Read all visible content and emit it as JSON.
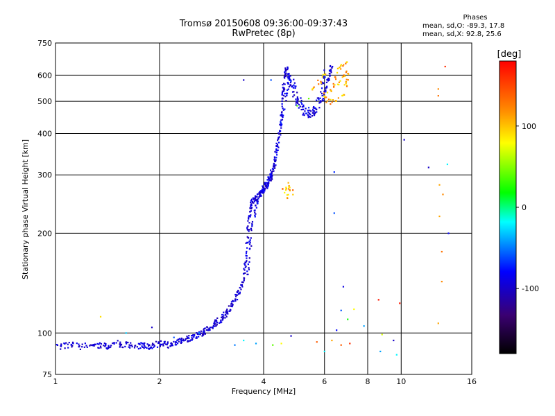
{
  "figure": {
    "title_line1": "Tromsø 20150608 09:36:00-09:37:43",
    "title_line2": "RwPretec (8p)",
    "phases_header": "Phases",
    "phases_o": "mean, sd,O:  -89.3, 17.8",
    "phases_x": "mean, sd,X:   92.8, 25.6"
  },
  "chart_data": {
    "type": "scatter",
    "xlabel": "Frequency [MHz]",
    "ylabel": "Stationary phase Virtual Height [km]",
    "xscale": "log",
    "yscale": "log",
    "xlim": [
      1,
      16
    ],
    "ylim": [
      75,
      750
    ],
    "x_ticks": [
      1,
      2,
      4,
      6,
      8,
      10,
      16
    ],
    "y_ticks": [
      75,
      100,
      200,
      300,
      400,
      500,
      600,
      750
    ],
    "grid": true,
    "colorbar": {
      "label": "[deg]",
      "range": [
        -180,
        180
      ],
      "ticks": [
        100,
        0,
        -100
      ]
    },
    "trace_o": [
      [
        1.0,
        91
      ],
      [
        1.1,
        92
      ],
      [
        1.2,
        91
      ],
      [
        1.3,
        92
      ],
      [
        1.4,
        91
      ],
      [
        1.5,
        93
      ],
      [
        1.6,
        92
      ],
      [
        1.7,
        91
      ],
      [
        1.8,
        92
      ],
      [
        1.9,
        91
      ],
      [
        2.0,
        93
      ],
      [
        2.1,
        92
      ],
      [
        2.2,
        93
      ],
      [
        2.3,
        95
      ],
      [
        2.4,
        96
      ],
      [
        2.5,
        97
      ],
      [
        2.6,
        99
      ],
      [
        2.7,
        101
      ],
      [
        2.8,
        104
      ],
      [
        2.9,
        107
      ],
      [
        3.0,
        110
      ],
      [
        3.1,
        114
      ],
      [
        3.2,
        119
      ],
      [
        3.3,
        126
      ],
      [
        3.4,
        134
      ],
      [
        3.5,
        145
      ],
      [
        3.55,
        165
      ],
      [
        3.6,
        200
      ],
      [
        3.65,
        235
      ],
      [
        3.7,
        250
      ],
      [
        3.8,
        255
      ],
      [
        3.9,
        262
      ],
      [
        4.0,
        270
      ],
      [
        4.1,
        280
      ],
      [
        4.2,
        300
      ],
      [
        4.3,
        330
      ],
      [
        4.4,
        380
      ],
      [
        4.5,
        450
      ],
      [
        4.55,
        530
      ],
      [
        4.6,
        600
      ],
      [
        4.65,
        630
      ],
      [
        4.8,
        560
      ],
      [
        5.0,
        490
      ],
      [
        5.3,
        455
      ],
      [
        5.6,
        460
      ],
      [
        5.9,
        500
      ],
      [
        6.1,
        560
      ],
      [
        6.2,
        610
      ],
      [
        6.3,
        640
      ]
    ],
    "trace_o2": [
      [
        3.6,
        150
      ],
      [
        3.65,
        180
      ],
      [
        3.7,
        210
      ],
      [
        3.8,
        240
      ],
      [
        3.9,
        265
      ],
      [
        4.0,
        275
      ],
      [
        4.1,
        285
      ],
      [
        4.2,
        295
      ],
      [
        4.3,
        320
      ],
      [
        4.4,
        360
      ],
      [
        4.5,
        430
      ],
      [
        4.6,
        500
      ],
      [
        4.7,
        560
      ],
      [
        4.8,
        600
      ],
      [
        5.0,
        520
      ],
      [
        5.3,
        470
      ],
      [
        5.6,
        480
      ],
      [
        5.9,
        540
      ],
      [
        6.0,
        620
      ]
    ],
    "trace_x": [
      [
        6.0,
        520
      ],
      [
        6.2,
        540
      ],
      [
        6.4,
        560
      ],
      [
        6.5,
        590
      ],
      [
        6.6,
        620
      ],
      [
        6.7,
        640
      ],
      [
        6.8,
        600
      ],
      [
        6.9,
        560
      ],
      [
        7.0,
        580
      ],
      [
        6.3,
        500
      ],
      [
        6.5,
        510
      ],
      [
        6.8,
        530
      ],
      [
        7.0,
        610
      ],
      [
        6.1,
        505
      ],
      [
        6.6,
        570
      ],
      [
        6.9,
        650
      ],
      [
        5.6,
        545
      ],
      [
        5.8,
        570
      ],
      [
        6.0,
        600
      ],
      [
        4.6,
        270
      ],
      [
        4.7,
        275
      ],
      [
        4.8,
        265
      ],
      [
        4.75,
        280
      ],
      [
        4.65,
        260
      ]
    ],
    "scatter_points": [
      [
        1.35,
        112,
        90
      ],
      [
        1.6,
        100,
        -30
      ],
      [
        1.9,
        104,
        -100
      ],
      [
        2.2,
        97,
        -60
      ],
      [
        2.6,
        100,
        -40
      ],
      [
        3.3,
        92,
        -50
      ],
      [
        3.5,
        95,
        -20
      ],
      [
        3.8,
        93,
        -40
      ],
      [
        4.25,
        92,
        40
      ],
      [
        4.5,
        93,
        80
      ],
      [
        4.8,
        98,
        -100
      ],
      [
        5.7,
        94,
        140
      ],
      [
        6.0,
        88,
        -20
      ],
      [
        6.3,
        95,
        110
      ],
      [
        6.7,
        92,
        140
      ],
      [
        7.1,
        93,
        160
      ],
      [
        6.5,
        102,
        -80
      ],
      [
        6.7,
        117,
        -60
      ],
      [
        6.8,
        138,
        -90
      ],
      [
        7.0,
        110,
        20
      ],
      [
        7.3,
        118,
        80
      ],
      [
        7.8,
        105,
        -40
      ],
      [
        8.6,
        126,
        170
      ],
      [
        8.7,
        88,
        -40
      ],
      [
        8.8,
        99,
        70
      ],
      [
        9.7,
        86,
        -20
      ],
      [
        9.9,
        123,
        170
      ],
      [
        9.5,
        95,
        -100
      ],
      [
        10.2,
        383,
        -100
      ],
      [
        12.0,
        316,
        -100
      ],
      [
        12.8,
        545,
        120
      ],
      [
        12.8,
        520,
        130
      ],
      [
        12.9,
        280,
        110
      ],
      [
        13.2,
        262,
        120
      ],
      [
        12.9,
        225,
        110
      ],
      [
        13.1,
        176,
        130
      ],
      [
        13.1,
        143,
        120
      ],
      [
        12.8,
        107,
        110
      ],
      [
        13.4,
        637,
        160
      ],
      [
        13.6,
        323,
        -20
      ],
      [
        13.7,
        200,
        -80
      ],
      [
        3.5,
        580,
        -100
      ],
      [
        4.2,
        580,
        -60
      ],
      [
        6.4,
        306,
        -70
      ],
      [
        6.4,
        230,
        -60
      ],
      [
        5.4,
        510,
        40
      ],
      [
        5.0,
        485,
        40
      ]
    ]
  }
}
